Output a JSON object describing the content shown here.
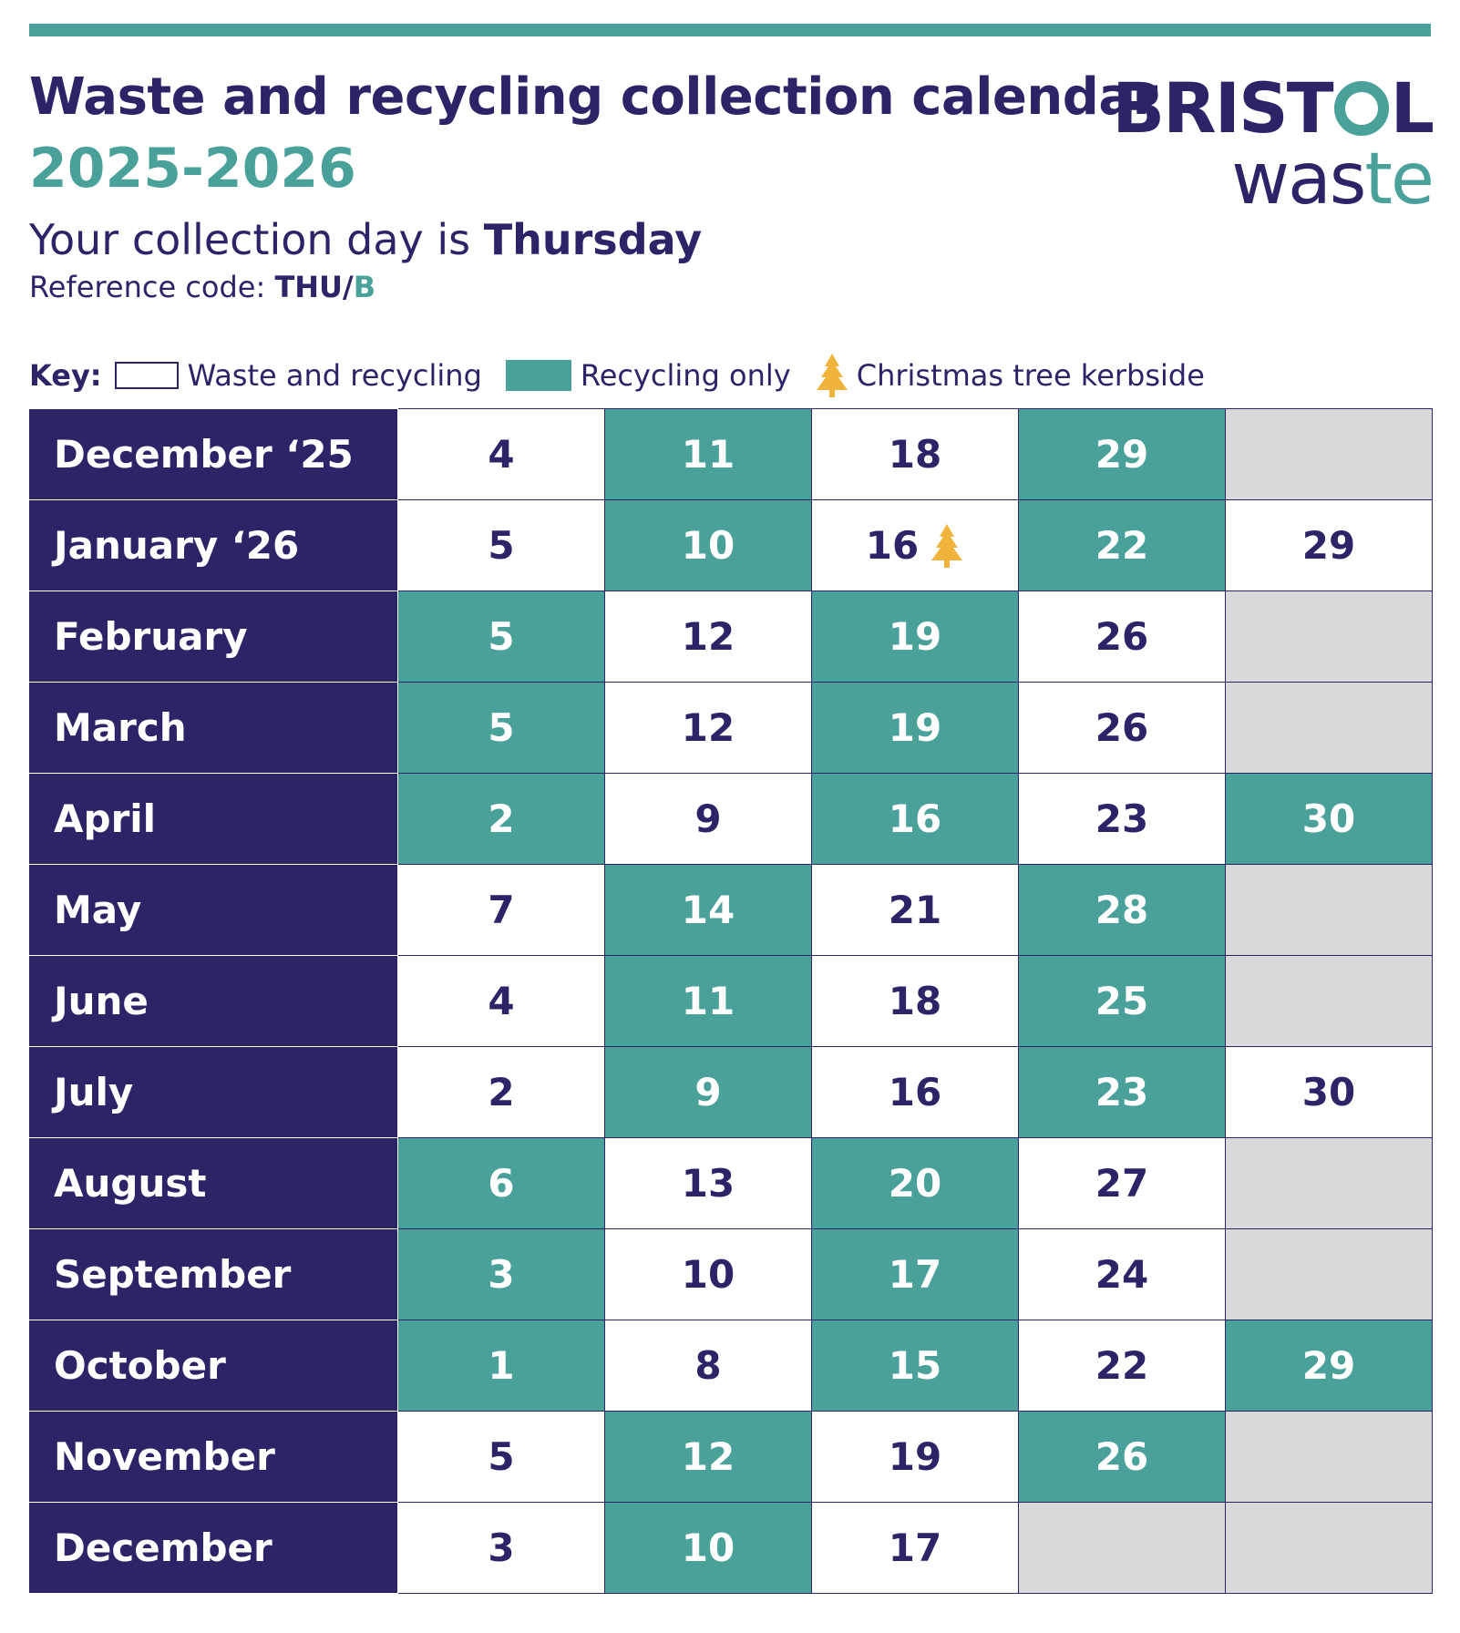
{
  "header": {
    "title": "Waste and recycling collection calendar",
    "years": "2025-2026",
    "day_prefix": "Your collection day is ",
    "day": "Thursday",
    "ref_prefix": "Reference code: ",
    "ref_code_main": "THU/",
    "ref_code_accent": "B"
  },
  "logo": {
    "line1_a": "BRIST",
    "line1_b": "L",
    "line2_a": "was",
    "line2_b": "te"
  },
  "key": {
    "label": "Key:",
    "waste_and_recycling": "Waste and recycling",
    "recycling_only": "Recycling only",
    "christmas_tree": "Christmas tree kerbside"
  },
  "colors": {
    "navy": "#2b2568",
    "teal": "#4aa199",
    "empty": "#d9d9d9",
    "tree": "#f0b43c"
  },
  "calendar": [
    {
      "month": "December ‘25",
      "cells": [
        {
          "d": "4",
          "t": "w"
        },
        {
          "d": "11",
          "t": "r"
        },
        {
          "d": "18",
          "t": "w"
        },
        {
          "d": "29",
          "t": "r"
        },
        {
          "d": "",
          "t": "e"
        }
      ]
    },
    {
      "month": "January ‘26",
      "cells": [
        {
          "d": "5",
          "t": "w"
        },
        {
          "d": "10",
          "t": "r"
        },
        {
          "d": "16",
          "t": "w",
          "tree": true
        },
        {
          "d": "22",
          "t": "r"
        },
        {
          "d": "29",
          "t": "w"
        }
      ]
    },
    {
      "month": "February",
      "cells": [
        {
          "d": "5",
          "t": "r"
        },
        {
          "d": "12",
          "t": "w"
        },
        {
          "d": "19",
          "t": "r"
        },
        {
          "d": "26",
          "t": "w"
        },
        {
          "d": "",
          "t": "e"
        }
      ]
    },
    {
      "month": "March",
      "cells": [
        {
          "d": "5",
          "t": "r"
        },
        {
          "d": "12",
          "t": "w"
        },
        {
          "d": "19",
          "t": "r"
        },
        {
          "d": "26",
          "t": "w"
        },
        {
          "d": "",
          "t": "e"
        }
      ]
    },
    {
      "month": "April",
      "cells": [
        {
          "d": "2",
          "t": "r"
        },
        {
          "d": "9",
          "t": "w"
        },
        {
          "d": "16",
          "t": "r"
        },
        {
          "d": "23",
          "t": "w"
        },
        {
          "d": "30",
          "t": "r"
        }
      ]
    },
    {
      "month": "May",
      "cells": [
        {
          "d": "7",
          "t": "w"
        },
        {
          "d": "14",
          "t": "r"
        },
        {
          "d": "21",
          "t": "w"
        },
        {
          "d": "28",
          "t": "r"
        },
        {
          "d": "",
          "t": "e"
        }
      ]
    },
    {
      "month": "June",
      "cells": [
        {
          "d": "4",
          "t": "w"
        },
        {
          "d": "11",
          "t": "r"
        },
        {
          "d": "18",
          "t": "w"
        },
        {
          "d": "25",
          "t": "r"
        },
        {
          "d": "",
          "t": "e"
        }
      ]
    },
    {
      "month": "July",
      "cells": [
        {
          "d": "2",
          "t": "w"
        },
        {
          "d": "9",
          "t": "r"
        },
        {
          "d": "16",
          "t": "w"
        },
        {
          "d": "23",
          "t": "r"
        },
        {
          "d": "30",
          "t": "w"
        }
      ]
    },
    {
      "month": "August",
      "cells": [
        {
          "d": "6",
          "t": "r"
        },
        {
          "d": "13",
          "t": "w"
        },
        {
          "d": "20",
          "t": "r"
        },
        {
          "d": "27",
          "t": "w"
        },
        {
          "d": "",
          "t": "e"
        }
      ]
    },
    {
      "month": "September",
      "cells": [
        {
          "d": "3",
          "t": "r"
        },
        {
          "d": "10",
          "t": "w"
        },
        {
          "d": "17",
          "t": "r"
        },
        {
          "d": "24",
          "t": "w"
        },
        {
          "d": "",
          "t": "e"
        }
      ]
    },
    {
      "month": "October",
      "cells": [
        {
          "d": "1",
          "t": "r"
        },
        {
          "d": "8",
          "t": "w"
        },
        {
          "d": "15",
          "t": "r"
        },
        {
          "d": "22",
          "t": "w"
        },
        {
          "d": "29",
          "t": "r"
        }
      ]
    },
    {
      "month": "November",
      "cells": [
        {
          "d": "5",
          "t": "w"
        },
        {
          "d": "12",
          "t": "r"
        },
        {
          "d": "19",
          "t": "w"
        },
        {
          "d": "26",
          "t": "r"
        },
        {
          "d": "",
          "t": "e"
        }
      ]
    },
    {
      "month": "December",
      "cells": [
        {
          "d": "3",
          "t": "w"
        },
        {
          "d": "10",
          "t": "r"
        },
        {
          "d": "17",
          "t": "w"
        },
        {
          "d": "",
          "t": "e"
        },
        {
          "d": "",
          "t": "e"
        }
      ]
    }
  ]
}
